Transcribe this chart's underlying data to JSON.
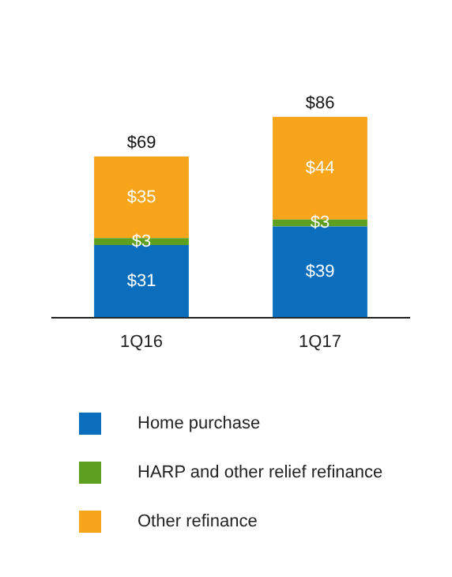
{
  "chart_data": {
    "type": "bar",
    "stacked": true,
    "categories": [
      "1Q16",
      "1Q17"
    ],
    "series": [
      {
        "name": "Home purchase",
        "color": "#0a6ebd",
        "values": [
          31,
          39
        ],
        "value_labels": [
          "$31",
          "$39"
        ]
      },
      {
        "name": "HARP and other relief refinance",
        "color": "#5f9f1f",
        "values": [
          3,
          3
        ],
        "value_labels": [
          "$3",
          "$3"
        ]
      },
      {
        "name": "Other refinance",
        "color": "#f8a51c",
        "values": [
          35,
          44
        ],
        "value_labels": [
          "$35",
          "$44"
        ]
      }
    ],
    "totals": [
      "$69",
      "$86"
    ],
    "legend": "bottom",
    "grid": false,
    "tick_labels": "x"
  }
}
